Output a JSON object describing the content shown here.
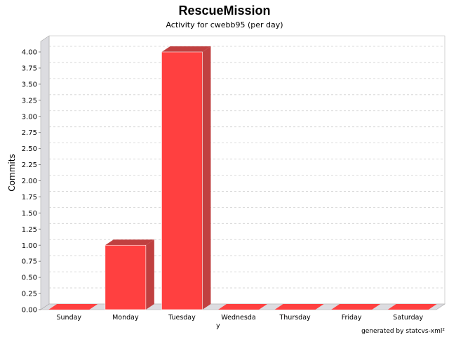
{
  "chart_data": {
    "type": "bar",
    "title": "RescueMission",
    "subtitle": "Activity for cwebb95 (per day)",
    "xlabel": "",
    "ylabel": "Commits",
    "categories": [
      "Sunday",
      "Monday",
      "Tuesday",
      "Wednesday",
      "Thursday",
      "Friday",
      "Saturday"
    ],
    "values": [
      0,
      1,
      4,
      0,
      0,
      0,
      0
    ],
    "ylim": [
      0,
      4
    ],
    "yticks": [
      0,
      0.25,
      0.5,
      0.75,
      1,
      1.25,
      1.5,
      1.75,
      2,
      2.25,
      2.5,
      2.75,
      3,
      3.25,
      3.5,
      3.75,
      4
    ],
    "ytick_format": "0.00",
    "grid": true,
    "three_d": true,
    "bar_color": "#ff4040",
    "bar_top_color": "#c04040",
    "bar_side_color": "#c04040",
    "wall_color": "#dcdce0"
  },
  "footer": "generated by statcvs-xml²"
}
